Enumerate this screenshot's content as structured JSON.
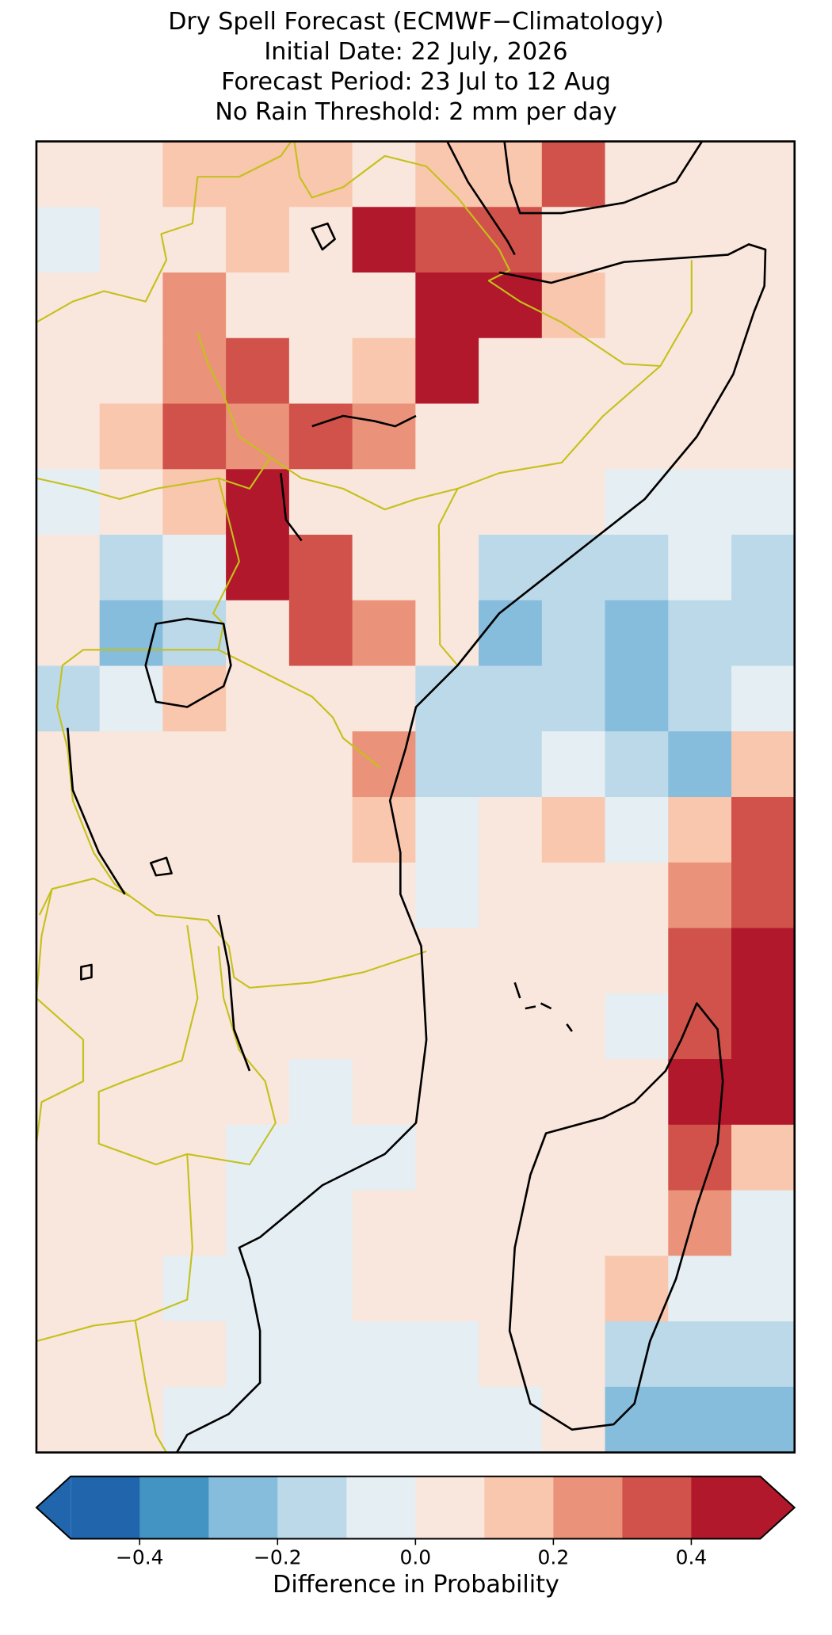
{
  "header": {
    "title": [
      "Dry Spell Forecast (ECMWF−Climatology)",
      "Initial Date: 22 July, 2026",
      "Forecast Period: 23 Jul to 12 Aug",
      "No Rain Threshold: 2 mm per day"
    ]
  },
  "map": {
    "grid": [
      [
        0.05,
        0.05,
        0.15,
        0.15,
        0.15,
        0.05,
        0.15,
        0.15,
        0.35,
        0.05,
        0.05,
        0.05
      ],
      [
        -0.05,
        0.05,
        0.05,
        0.15,
        0.05,
        0.45,
        0.35,
        0.35,
        0.05,
        0.05,
        0.05,
        0.05
      ],
      [
        0.05,
        0.05,
        0.25,
        0.05,
        0.05,
        0.05,
        0.45,
        0.45,
        0.15,
        0.05,
        0.05,
        0.05
      ],
      [
        0.05,
        0.05,
        0.25,
        0.35,
        0.05,
        0.15,
        0.45,
        0.05,
        0.05,
        0.05,
        0.05,
        0.05
      ],
      [
        0.05,
        0.15,
        0.35,
        0.25,
        0.35,
        0.25,
        0.05,
        0.05,
        0.05,
        0.05,
        0.05,
        0.05
      ],
      [
        -0.05,
        0.05,
        0.15,
        0.45,
        0.05,
        0.05,
        0.05,
        0.05,
        0.05,
        -0.05,
        -0.05,
        -0.05
      ],
      [
        0.05,
        -0.15,
        -0.05,
        0.45,
        0.35,
        0.05,
        0.05,
        -0.15,
        -0.15,
        -0.15,
        -0.05,
        -0.15
      ],
      [
        0.05,
        -0.25,
        -0.15,
        0.05,
        0.35,
        0.25,
        0.05,
        -0.25,
        -0.15,
        -0.25,
        -0.15,
        -0.15
      ],
      [
        -0.15,
        -0.05,
        0.15,
        0.05,
        0.05,
        0.05,
        -0.15,
        -0.15,
        -0.15,
        -0.25,
        -0.15,
        -0.05
      ],
      [
        0.05,
        0.05,
        0.05,
        0.05,
        0.05,
        0.25,
        -0.15,
        -0.15,
        -0.05,
        -0.15,
        -0.25,
        0.15
      ],
      [
        0.05,
        0.05,
        0.05,
        0.05,
        0.05,
        0.15,
        -0.05,
        0.05,
        0.15,
        -0.05,
        0.15,
        0.35
      ],
      [
        0.05,
        0.05,
        0.05,
        0.05,
        0.05,
        0.05,
        -0.05,
        0.05,
        0.05,
        0.05,
        0.25,
        0.35
      ],
      [
        0.05,
        0.05,
        0.05,
        0.05,
        0.05,
        0.05,
        0.05,
        0.05,
        0.05,
        0.05,
        0.35,
        0.45
      ],
      [
        0.05,
        0.05,
        0.05,
        0.05,
        0.05,
        0.05,
        0.05,
        0.05,
        0.05,
        -0.05,
        0.35,
        0.45
      ],
      [
        0.05,
        0.05,
        0.05,
        0.05,
        -0.05,
        0.05,
        0.05,
        0.05,
        0.05,
        0.05,
        0.45,
        0.45
      ],
      [
        0.05,
        0.05,
        0.05,
        -0.05,
        -0.05,
        -0.05,
        0.05,
        0.05,
        0.05,
        0.05,
        0.35,
        0.15
      ],
      [
        0.05,
        0.05,
        0.05,
        -0.05,
        -0.05,
        0.05,
        0.05,
        0.05,
        0.05,
        0.05,
        0.25,
        -0.05
      ],
      [
        0.05,
        0.05,
        -0.05,
        -0.05,
        -0.05,
        0.05,
        0.05,
        0.05,
        0.05,
        0.15,
        -0.05,
        -0.05
      ],
      [
        0.05,
        0.05,
        0.05,
        -0.05,
        -0.05,
        -0.05,
        -0.05,
        0.05,
        0.05,
        -0.15,
        -0.15,
        -0.15
      ],
      [
        0.05,
        0.05,
        -0.05,
        -0.05,
        -0.05,
        -0.05,
        -0.05,
        -0.05,
        0.05,
        -0.25,
        -0.25,
        -0.25
      ]
    ]
  },
  "colorbar": {
    "bounds": [
      -0.5,
      -0.4,
      -0.3,
      -0.2,
      -0.1,
      0,
      0.1,
      0.2,
      0.3,
      0.4,
      0.5
    ],
    "colors": [
      "#2166ac",
      "#4393c3",
      "#86bcdc",
      "#bcd9ea",
      "#e5eef3",
      "#f9e6dc",
      "#f9c6ae",
      "#eb937a",
      "#d1524a",
      "#b2182b"
    ],
    "ticks": [
      {
        "value": -0.4,
        "label": "−0.4"
      },
      {
        "value": -0.2,
        "label": "−0.2"
      },
      {
        "value": 0,
        "label": "0.0"
      },
      0.2,
      0.4
    ],
    "label": "Difference in Probability"
  }
}
